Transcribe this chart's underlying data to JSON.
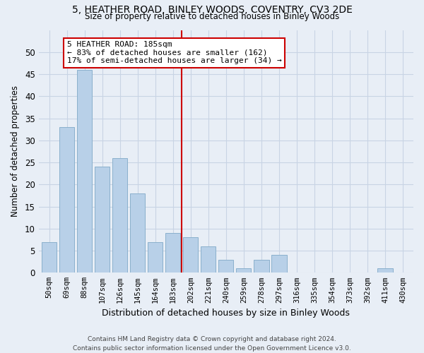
{
  "title1": "5, HEATHER ROAD, BINLEY WOODS, COVENTRY, CV3 2DE",
  "title2": "Size of property relative to detached houses in Binley Woods",
  "xlabel": "Distribution of detached houses by size in Binley Woods",
  "ylabel": "Number of detached properties",
  "categories": [
    "50sqm",
    "69sqm",
    "88sqm",
    "107sqm",
    "126sqm",
    "145sqm",
    "164sqm",
    "183sqm",
    "202sqm",
    "221sqm",
    "240sqm",
    "259sqm",
    "278sqm",
    "297sqm",
    "316sqm",
    "335sqm",
    "354sqm",
    "373sqm",
    "392sqm",
    "411sqm",
    "430sqm"
  ],
  "values": [
    7,
    33,
    46,
    24,
    26,
    18,
    7,
    9,
    8,
    6,
    3,
    1,
    3,
    4,
    0,
    0,
    0,
    0,
    0,
    1,
    0
  ],
  "bar_color": "#b8d0e8",
  "bar_edge_color": "#8ab0cc",
  "grid_color": "#c8d4e4",
  "background_color": "#e8eef6",
  "property_line_x": 7.5,
  "annotation_line1": "5 HEATHER ROAD: 185sqm",
  "annotation_line2": "← 83% of detached houses are smaller (162)",
  "annotation_line3": "17% of semi-detached houses are larger (34) →",
  "annotation_box_color": "#ffffff",
  "annotation_border_color": "#cc0000",
  "footer": "Contains HM Land Registry data © Crown copyright and database right 2024.\nContains public sector information licensed under the Open Government Licence v3.0.",
  "ylim": [
    0,
    55
  ],
  "yticks": [
    0,
    5,
    10,
    15,
    20,
    25,
    30,
    35,
    40,
    45,
    50
  ]
}
